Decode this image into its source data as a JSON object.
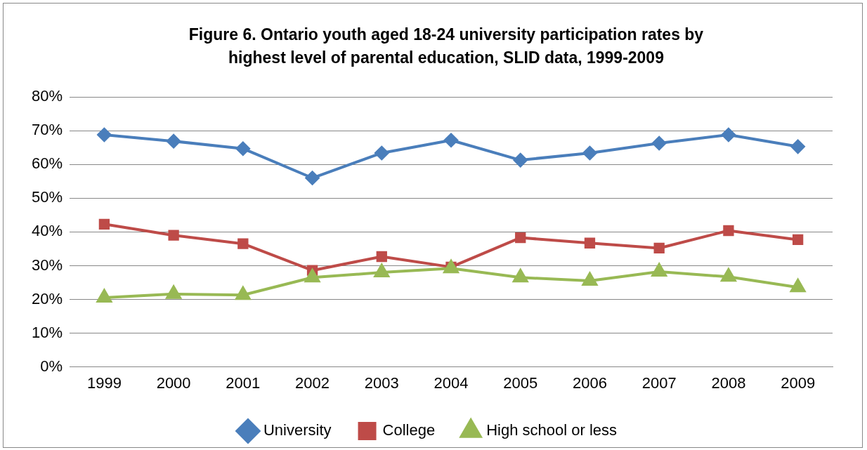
{
  "chart_data": {
    "type": "line",
    "title": "Figure 6. Ontario youth aged 18-24 university participation rates by highest level of parental education, SLID data, 1999-2009",
    "categories": [
      "1999",
      "2000",
      "2001",
      "2002",
      "2003",
      "2004",
      "2005",
      "2006",
      "2007",
      "2008",
      "2009"
    ],
    "series": [
      {
        "name": "University",
        "color": "#4a7ebb",
        "marker": "diamond",
        "values": [
          68.8,
          66.9,
          64.7,
          56.0,
          63.4,
          67.2,
          61.3,
          63.4,
          66.3,
          68.8,
          65.3
        ]
      },
      {
        "name": "College",
        "color": "#be4b48",
        "marker": "square",
        "values": [
          42.3,
          39.0,
          36.5,
          28.6,
          32.7,
          29.6,
          38.3,
          36.7,
          35.2,
          40.4,
          37.7
        ]
      },
      {
        "name": "High school or less",
        "color": "#98b954",
        "marker": "triangle",
        "values": [
          20.5,
          21.6,
          21.3,
          26.5,
          28.0,
          29.2,
          26.5,
          25.5,
          28.2,
          26.7,
          23.6
        ]
      }
    ],
    "ylim": [
      0,
      80
    ],
    "yticks": [
      {
        "value": 0,
        "label": "0%"
      },
      {
        "value": 10,
        "label": "10%"
      },
      {
        "value": 20,
        "label": "20%"
      },
      {
        "value": 30,
        "label": "30%"
      },
      {
        "value": 40,
        "label": "40%"
      },
      {
        "value": 50,
        "label": "50%"
      },
      {
        "value": 60,
        "label": "60%"
      },
      {
        "value": 70,
        "label": "70%"
      },
      {
        "value": 80,
        "label": "80%"
      }
    ],
    "grid": "y",
    "legend": "bottom",
    "line_style": "solid"
  }
}
